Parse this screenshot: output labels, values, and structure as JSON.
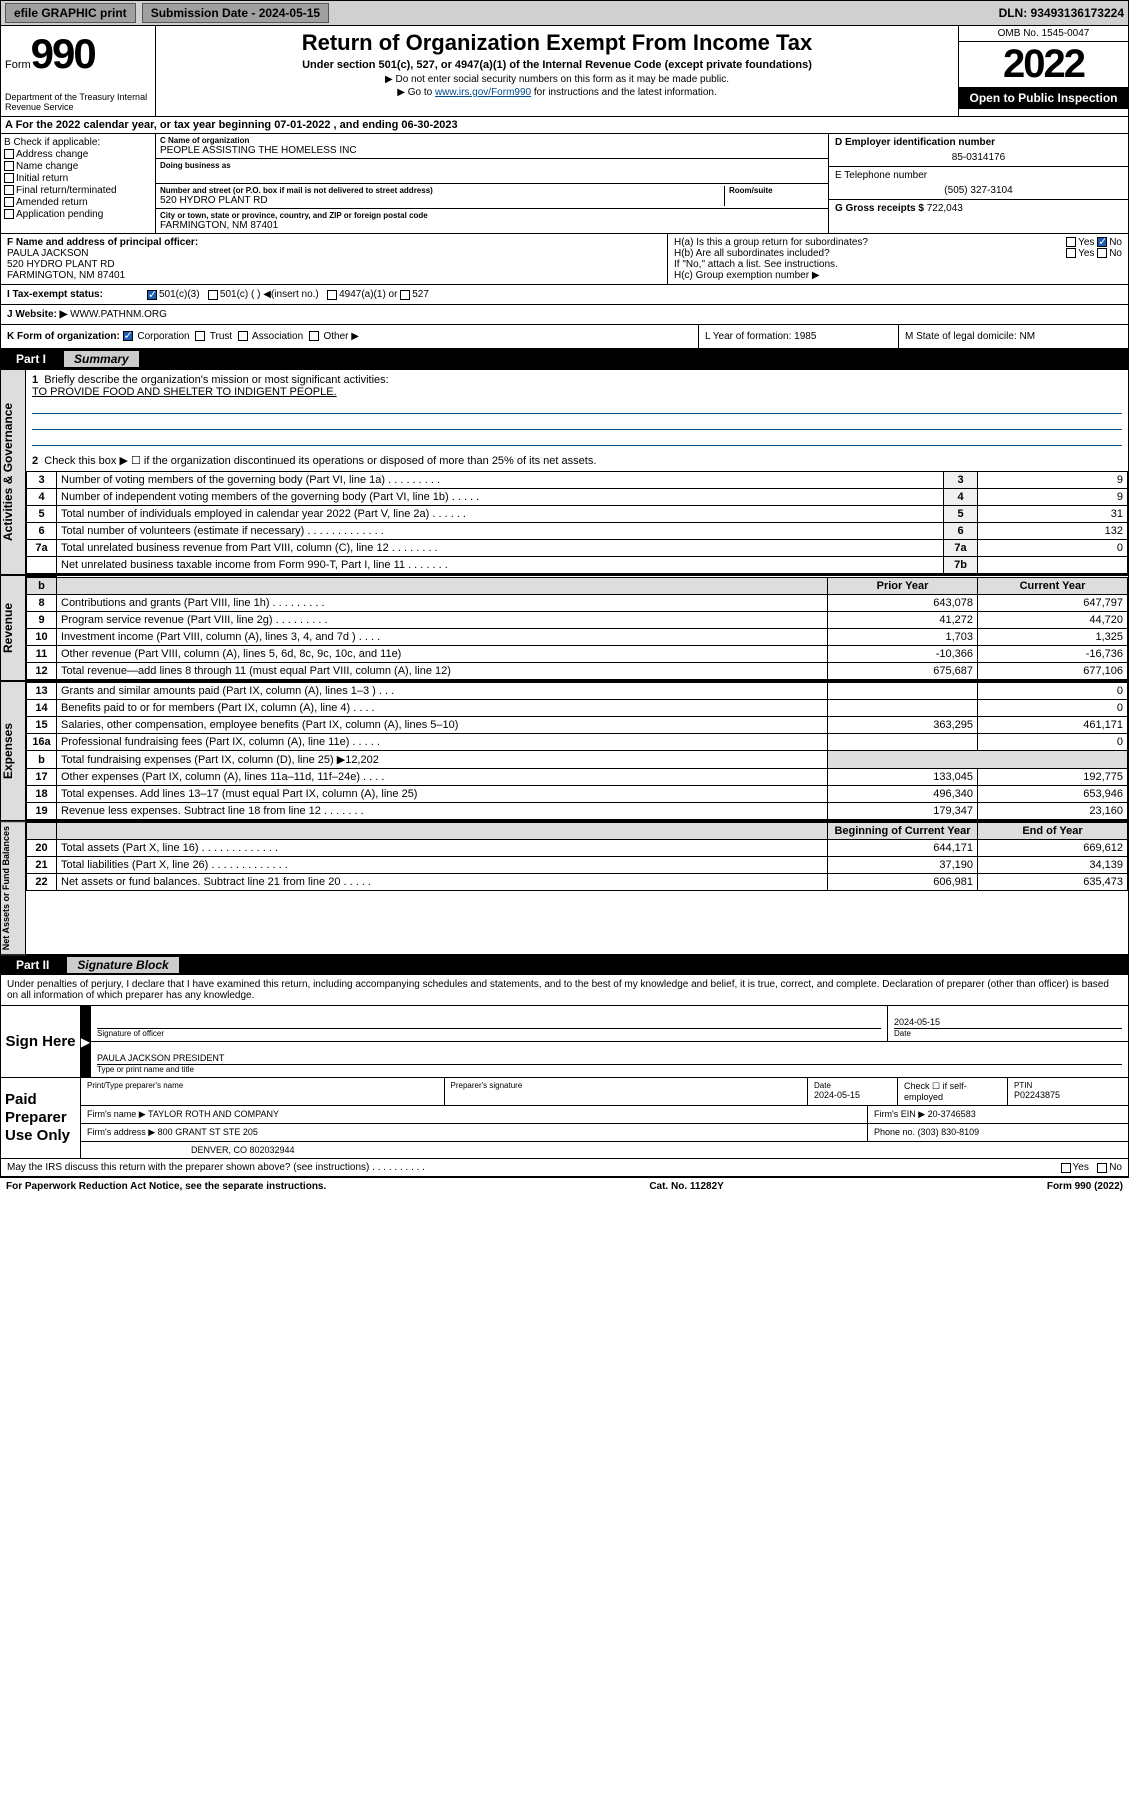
{
  "topbar": {
    "efile": "efile GRAPHIC print",
    "submission_label": "Submission Date - 2024-05-15",
    "dln": "DLN: 93493136173224"
  },
  "header": {
    "form_word": "Form",
    "form_num": "990",
    "dept": "Department of the Treasury\nInternal Revenue Service",
    "title": "Return of Organization Exempt From Income Tax",
    "sub": "Under section 501(c), 527, or 4947(a)(1) of the Internal Revenue Code (except private foundations)",
    "arrow1": "▶ Do not enter social security numbers on this form as it may be made public.",
    "arrow2_pre": "▶ Go to ",
    "arrow2_link": "www.irs.gov/Form990",
    "arrow2_post": " for instructions and the latest information.",
    "omb": "OMB No. 1545-0047",
    "year": "2022",
    "inspect": "Open to Public Inspection"
  },
  "row_a": "A For the 2022 calendar year, or tax year beginning 07-01-2022    , and ending 06-30-2023",
  "section_b": {
    "check_label": "B Check if applicable:",
    "opts": [
      "Address change",
      "Name change",
      "Initial return",
      "Final return/terminated",
      "Amended return",
      "Application pending"
    ],
    "c_label": "C Name of organization",
    "c_name": "PEOPLE ASSISTING THE HOMELESS INC",
    "dba_label": "Doing business as",
    "street_label": "Number and street (or P.O. box if mail is not delivered to street address)",
    "street": "520 HYDRO PLANT RD",
    "room_label": "Room/suite",
    "city_label": "City or town, state or province, country, and ZIP or foreign postal code",
    "city": "FARMINGTON, NM  87401",
    "d_label": "D Employer identification number",
    "d_val": "85-0314176",
    "e_label": "E Telephone number",
    "e_val": "(505) 327-3104",
    "g_label": "G Gross receipts $",
    "g_val": "722,043"
  },
  "row_f": {
    "f_label": "F Name and address of principal officer:",
    "f_name": "PAULA JACKSON",
    "f_addr1": "520 HYDRO PLANT RD",
    "f_addr2": "FARMINGTON, NM  87401",
    "ha": "H(a)  Is this a group return for subordinates?",
    "hb": "H(b)  Are all subordinates included?",
    "hb_note": "If \"No,\" attach a list. See instructions.",
    "hc": "H(c)  Group exemption number ▶",
    "yes": "Yes",
    "no": "No"
  },
  "row_i": {
    "label": "I    Tax-exempt status:",
    "opt1": "501(c)(3)",
    "opt2": "501(c) (  ) ◀(insert no.)",
    "opt3": "4947(a)(1) or",
    "opt4": "527"
  },
  "row_j": {
    "label": "J   Website: ▶",
    "val": "WWW.PATHNM.ORG"
  },
  "row_k": {
    "k": "K Form of organization:",
    "opts": [
      "Corporation",
      "Trust",
      "Association",
      "Other ▶"
    ],
    "l": "L Year of formation: 1985",
    "m": "M State of legal domicile: NM"
  },
  "part1": {
    "num": "Part I",
    "label": "Summary",
    "q1": "Briefly describe the organization's mission or most significant activities:",
    "q1_ans": "TO PROVIDE FOOD AND SHELTER TO INDIGENT PEOPLE.",
    "q2": "Check this box ▶ ☐  if the organization discontinued its operations or disposed of more than 25% of its net assets.",
    "lines_gov": [
      {
        "n": "3",
        "d": "Number of voting members of the governing body (Part VI, line 1a)  .    .    .    .    .    .    .    .    .",
        "b": "3",
        "v": "9"
      },
      {
        "n": "4",
        "d": "Number of independent voting members of the governing body (Part VI, line 1b)  .    .    .    .    .",
        "b": "4",
        "v": "9"
      },
      {
        "n": "5",
        "d": "Total number of individuals employed in calendar year 2022 (Part V, line 2a)  .    .    .    .    .    .",
        "b": "5",
        "v": "31"
      },
      {
        "n": "6",
        "d": "Total number of volunteers (estimate if necessary)  .    .    .    .    .    .    .    .    .    .    .    .    .",
        "b": "6",
        "v": "132"
      },
      {
        "n": "7a",
        "d": "Total unrelated business revenue from Part VIII, column (C), line 12  .    .    .    .    .    .    .    .",
        "b": "7a",
        "v": "0"
      },
      {
        "n": "",
        "d": "Net unrelated business taxable income from Form 990-T, Part I, line 11  .    .    .    .    .    .    .",
        "b": "7b",
        "v": ""
      }
    ],
    "hdr_prior": "Prior Year",
    "hdr_curr": "Current Year",
    "lines_rev": [
      {
        "n": "8",
        "d": "Contributions and grants (Part VIII, line 1h)   .    .    .    .    .    .    .    .    .",
        "p": "643,078",
        "c": "647,797"
      },
      {
        "n": "9",
        "d": "Program service revenue (Part VIII, line 2g)   .    .    .    .    .    .    .    .    .",
        "p": "41,272",
        "c": "44,720"
      },
      {
        "n": "10",
        "d": "Investment income (Part VIII, column (A), lines 3, 4, and 7d )   .    .    .    .",
        "p": "1,703",
        "c": "1,325"
      },
      {
        "n": "11",
        "d": "Other revenue (Part VIII, column (A), lines 5, 6d, 8c, 9c, 10c, and 11e)",
        "p": "-10,366",
        "c": "-16,736"
      },
      {
        "n": "12",
        "d": "Total revenue—add lines 8 through 11 (must equal Part VIII, column (A), line 12)",
        "p": "675,687",
        "c": "677,106"
      }
    ],
    "lines_exp": [
      {
        "n": "13",
        "d": "Grants and similar amounts paid (Part IX, column (A), lines 1–3 )   .    .    .",
        "p": "",
        "c": "0"
      },
      {
        "n": "14",
        "d": "Benefits paid to or for members (Part IX, column (A), line 4)   .    .    .    .",
        "p": "",
        "c": "0"
      },
      {
        "n": "15",
        "d": "Salaries, other compensation, employee benefits (Part IX, column (A), lines 5–10)",
        "p": "363,295",
        "c": "461,171"
      },
      {
        "n": "16a",
        "d": "Professional fundraising fees (Part IX, column (A), line 11e)   .    .    .    .    .",
        "p": "",
        "c": "0"
      },
      {
        "n": "b",
        "d": "Total fundraising expenses (Part IX, column (D), line 25) ▶12,202",
        "p": "",
        "c": ""
      },
      {
        "n": "17",
        "d": "Other expenses (Part IX, column (A), lines 11a–11d, 11f–24e)   .    .    .    .",
        "p": "133,045",
        "c": "192,775"
      },
      {
        "n": "18",
        "d": "Total expenses. Add lines 13–17 (must equal Part IX, column (A), line 25)",
        "p": "496,340",
        "c": "653,946"
      },
      {
        "n": "19",
        "d": "Revenue less expenses. Subtract line 18 from line 12   .    .    .    .    .    .    .",
        "p": "179,347",
        "c": "23,160"
      }
    ],
    "hdr_beg": "Beginning of Current Year",
    "hdr_end": "End of Year",
    "lines_net": [
      {
        "n": "20",
        "d": "Total assets (Part X, line 16)   .    .    .    .    .    .    .    .    .    .    .    .    .",
        "p": "644,171",
        "c": "669,612"
      },
      {
        "n": "21",
        "d": "Total liabilities (Part X, line 26)   .    .    .    .    .    .    .    .    .    .    .    .    .",
        "p": "37,190",
        "c": "34,139"
      },
      {
        "n": "22",
        "d": "Net assets or fund balances. Subtract line 21 from line 20   .    .    .    .    .",
        "p": "606,981",
        "c": "635,473"
      }
    ],
    "vtab_gov": "Activities & Governance",
    "vtab_rev": "Revenue",
    "vtab_exp": "Expenses",
    "vtab_net": "Net Assets or Fund Balances"
  },
  "part2": {
    "num": "Part II",
    "label": "Signature Block",
    "decl": "Under penalties of perjury, I declare that I have examined this return, including accompanying schedules and statements, and to the best of my knowledge and belief, it is true, correct, and complete. Declaration of preparer (other than officer) is based on all information of which preparer has any knowledge.",
    "sign_here": "Sign Here",
    "sig_officer": "Signature of officer",
    "date_label": "Date",
    "date_val": "2024-05-15",
    "name_title": "PAULA JACKSON PRESIDENT",
    "name_sub": "Type or print name and title",
    "paid": "Paid Preparer Use Only",
    "prep_name_label": "Print/Type preparer's name",
    "prep_sig_label": "Preparer's signature",
    "prep_date_label": "Date",
    "prep_date": "2024-05-15",
    "check_if": "Check ☐ if self-employed",
    "ptin_label": "PTIN",
    "ptin": "P02243875",
    "firm_name_label": "Firm's name    ▶",
    "firm_name": "TAYLOR ROTH AND COMPANY",
    "firm_ein_label": "Firm's EIN ▶",
    "firm_ein": "20-3746583",
    "firm_addr_label": "Firm's address ▶",
    "firm_addr1": "800 GRANT ST STE 205",
    "firm_addr2": "DENVER, CO  802032944",
    "phone_label": "Phone no.",
    "phone": "(303) 830-8109",
    "discuss": "May the IRS discuss this return with the preparer shown above? (see instructions)   .    .    .    .    .    .    .    .    .    .",
    "yes": "Yes",
    "no": "No"
  },
  "footer": {
    "left": "For Paperwork Reduction Act Notice, see the separate instructions.",
    "mid": "Cat. No. 11282Y",
    "right": "Form 990 (2022)"
  },
  "colors": {
    "link": "#004b8d",
    "checked": "#1a5fb4"
  }
}
